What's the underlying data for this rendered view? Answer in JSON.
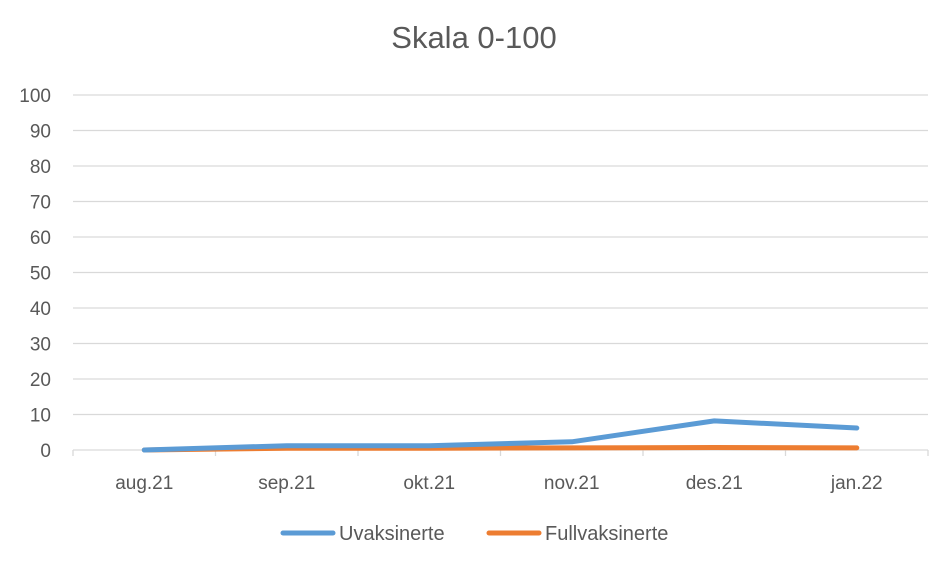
{
  "chart_data": {
    "type": "line",
    "title": "Skala 0-100",
    "xlabel": "",
    "ylabel": "",
    "categories": [
      "aug.21",
      "sep.21",
      "okt.21",
      "nov.21",
      "des.21",
      "jan.22"
    ],
    "ylim": [
      0,
      100
    ],
    "yticks": [
      0,
      10,
      20,
      30,
      40,
      50,
      60,
      70,
      80,
      90,
      100
    ],
    "grid": true,
    "legend_position": "bottom",
    "series": [
      {
        "name": "Uvaksinerte",
        "color": "#5B9BD5",
        "values": [
          0,
          1.2,
          1.2,
          2.3,
          8.2,
          6.2
        ]
      },
      {
        "name": "Fullvaksinerte",
        "color": "#ED7D31",
        "values": [
          0,
          0.5,
          0.5,
          0.6,
          0.7,
          0.6
        ]
      }
    ]
  }
}
